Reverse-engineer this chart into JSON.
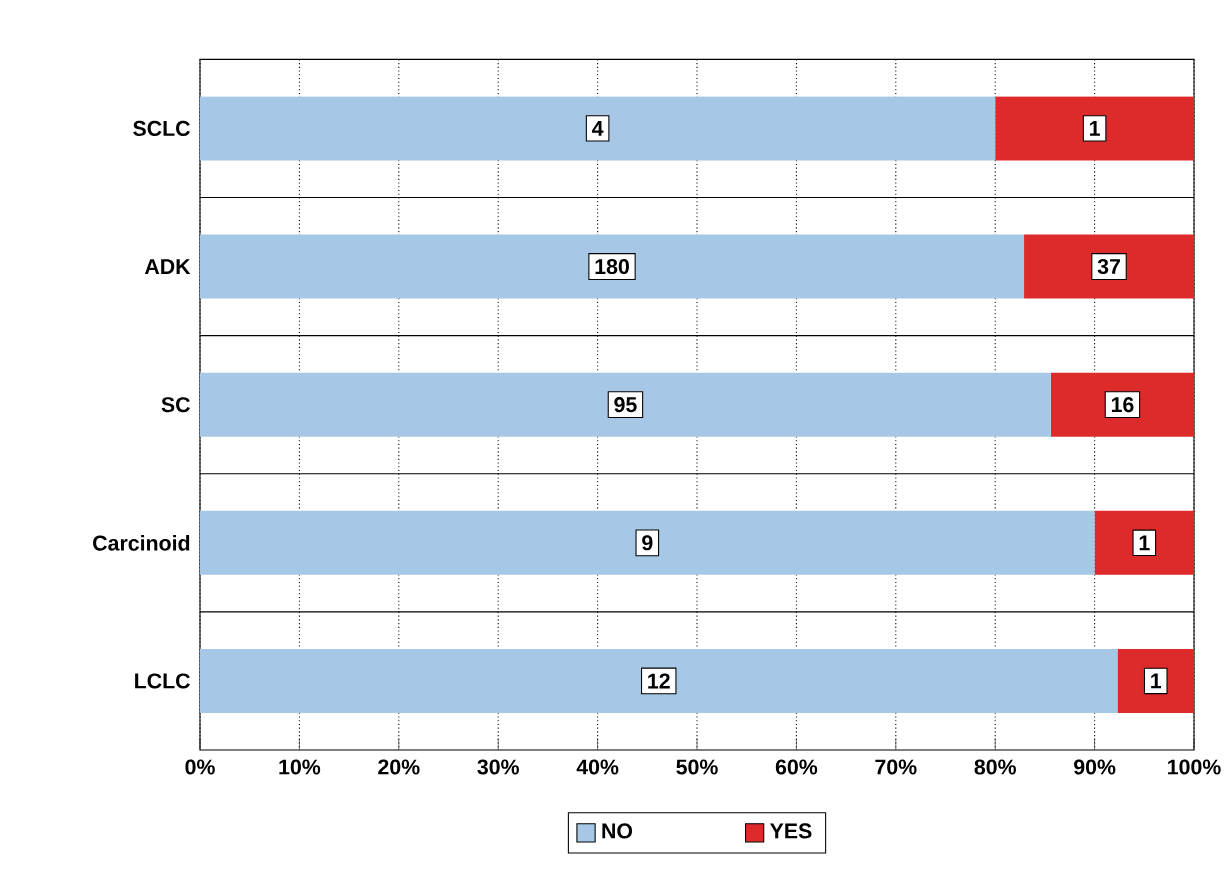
{
  "chart_data": {
    "type": "bar",
    "orientation": "horizontal",
    "stacked": true,
    "categories": [
      "SCLC",
      "ADK",
      "SC",
      "Carcinoid",
      "LCLC"
    ],
    "series": [
      {
        "name": "NO",
        "color": "#a6c8e6",
        "values": [
          80,
          82.9,
          85.6,
          90,
          92.3
        ]
      },
      {
        "name": "YES",
        "color": "#dd2a2a",
        "values": [
          20,
          17.1,
          14.4,
          10,
          7.7
        ]
      }
    ],
    "annotations": [
      {
        "text": "4",
        "x": 40,
        "y": "SCLC"
      },
      {
        "text": "180",
        "x": 41.45,
        "y": "ADK"
      },
      {
        "text": "95",
        "x": 42.8,
        "y": "SC"
      },
      {
        "text": "9",
        "x": 45,
        "y": "Carcinoid"
      },
      {
        "text": "12",
        "x": 46.15,
        "y": "LCLC"
      },
      {
        "text": "1",
        "x": 90,
        "y": "SCLC"
      },
      {
        "text": "37",
        "x": 91.45,
        "y": "ADK"
      },
      {
        "text": "16",
        "x": 92.8,
        "y": "SC"
      },
      {
        "text": "1",
        "x": 95,
        "y": "Carcinoid"
      },
      {
        "text": "1",
        "x": 96.15,
        "y": "LCLC"
      }
    ],
    "xlim": [
      0,
      100
    ],
    "xticks": [
      {
        "value": 0,
        "label": "0%"
      },
      {
        "value": 10,
        "label": "10%"
      },
      {
        "value": 20,
        "label": "20%"
      },
      {
        "value": 30,
        "label": "30%"
      },
      {
        "value": 40,
        "label": "40%"
      },
      {
        "value": 50,
        "label": "50%"
      },
      {
        "value": 60,
        "label": "60%"
      },
      {
        "value": 70,
        "label": "70%"
      },
      {
        "value": 80,
        "label": "80%"
      },
      {
        "value": 90,
        "label": "90%"
      },
      {
        "value": 100,
        "label": "100%"
      }
    ],
    "grid": "x",
    "legend": "bottom"
  }
}
